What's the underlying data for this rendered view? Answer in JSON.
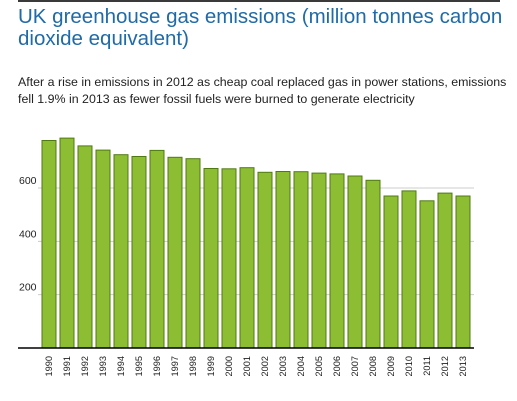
{
  "header": {
    "title": "UK greenhouse gas emissions (million tonnes carbon dioxide equivalent)",
    "subtitle": "After a rise in emissions in 2012 as cheap coal replaced gas in power stations, emissions fell 1.9% in 2013 as fewer fossil fuels were burned to generate electricity"
  },
  "colors": {
    "bar_fill": "#8cbd33",
    "bar_stroke": "#4f7a12",
    "gridline": "#cccccc",
    "axis": "#000000",
    "title": "#1f6aa8"
  },
  "chart_data": {
    "type": "bar",
    "categories": [
      "1990",
      "1991",
      "1992",
      "1993",
      "1994",
      "1995",
      "1996",
      "1997",
      "1998",
      "1999",
      "2000",
      "2001",
      "2002",
      "2003",
      "2004",
      "2005",
      "2006",
      "2007",
      "2008",
      "2009",
      "2010",
      "2011",
      "2012",
      "2013"
    ],
    "values": [
      778,
      787,
      758,
      742,
      725,
      718,
      741,
      715,
      710,
      673,
      672,
      676,
      659,
      662,
      661,
      656,
      653,
      645,
      629,
      570,
      589,
      552,
      581,
      570
    ],
    "yticks": [
      200,
      400,
      600
    ],
    "ylim": [
      0,
      800
    ],
    "grid": true,
    "legend": "none"
  }
}
